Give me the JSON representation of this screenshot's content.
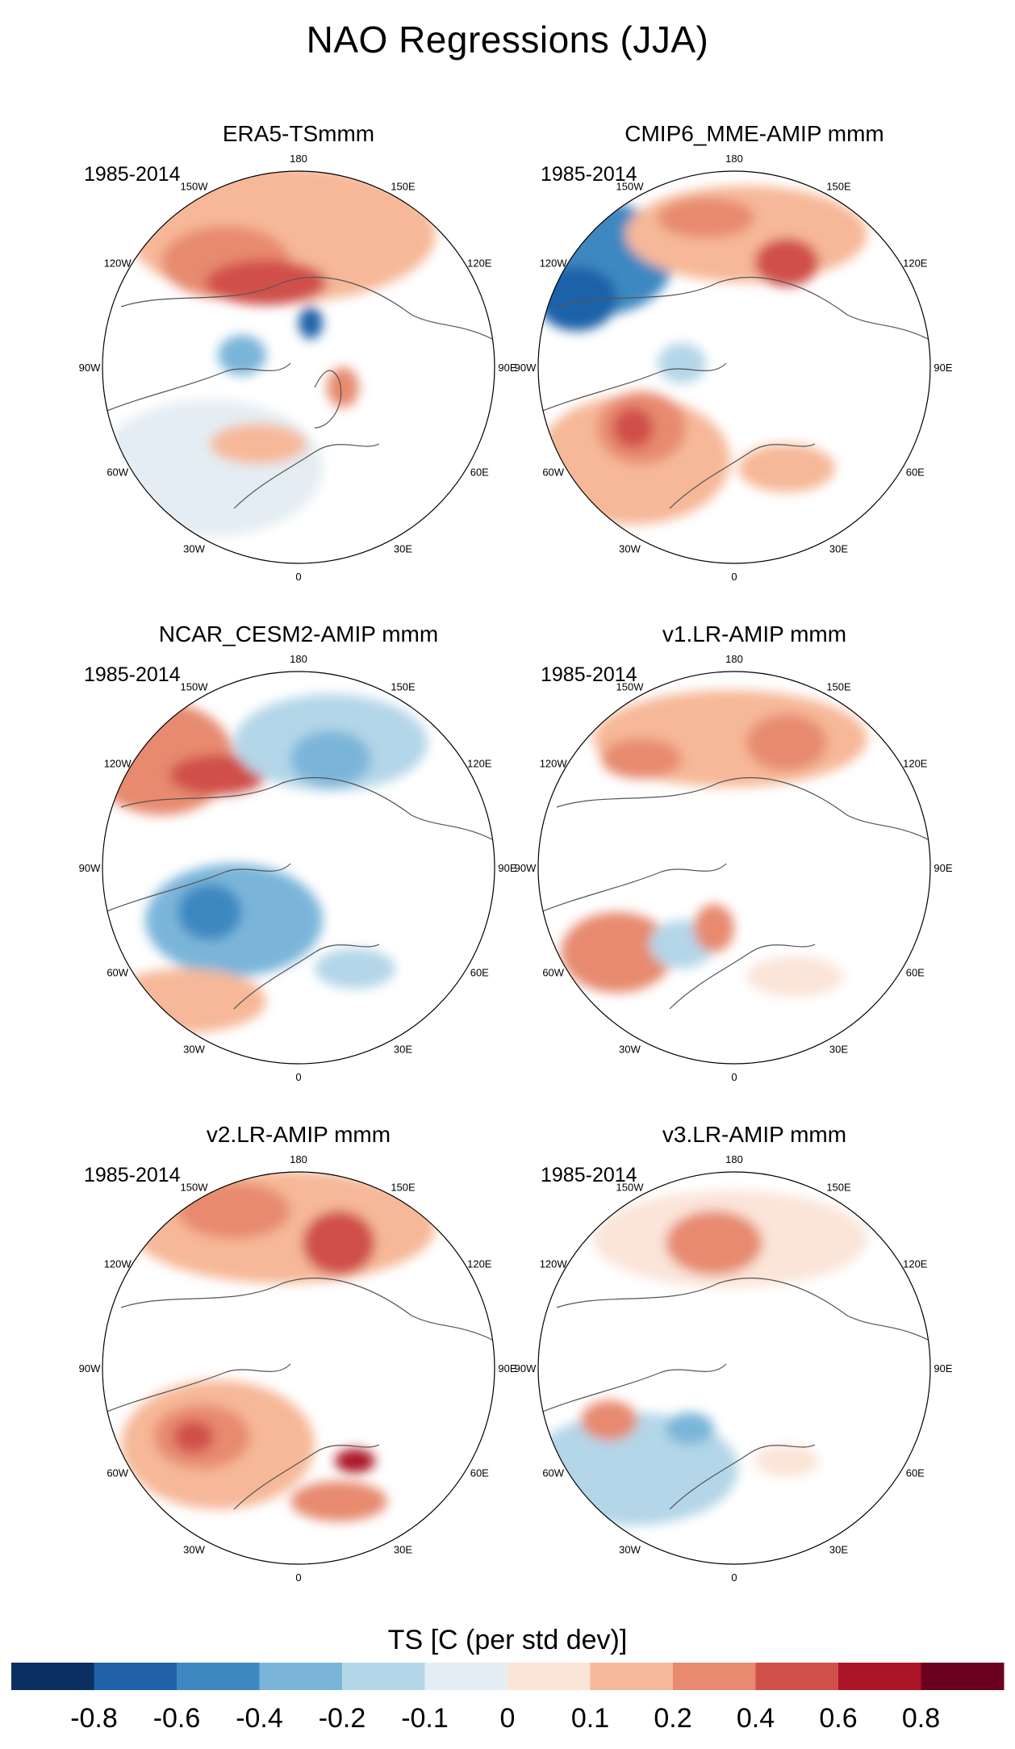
{
  "title": "NAO Regressions (JJA)",
  "colorbar": {
    "title": "TS [C (per std dev)]",
    "colors": [
      "#0b2f60",
      "#1f62a8",
      "#3d88c1",
      "#7ab5d9",
      "#b3d6e8",
      "#e4edf3",
      "#fbe4d8",
      "#f6b898",
      "#e78a6f",
      "#d0504a",
      "#ac1527",
      "#6b0020"
    ],
    "labels": [
      "-0.8",
      "-0.6",
      "-0.4",
      "-0.2",
      "-0.1",
      "0",
      "0.1",
      "0.2",
      "0.4",
      "0.6",
      "0.8"
    ]
  },
  "longitude_labels": [
    "180",
    "150E",
    "120E",
    "90E",
    "60E",
    "30E",
    "0",
    "30W",
    "60W",
    "90W",
    "120W",
    "150W"
  ],
  "panels": [
    {
      "title": "ERA5-TSmmm",
      "period": "1985-2014"
    },
    {
      "title": "CMIP6_MME-AMIP  mmm",
      "period": "1985-2014"
    },
    {
      "title": "NCAR_CESM2-AMIP  mmm",
      "period": "1985-2014"
    },
    {
      "title": "v1.LR-AMIP  mmm",
      "period": "1985-2014"
    },
    {
      "title": "v2.LR-AMIP  mmm",
      "period": "1985-2014"
    },
    {
      "title": "v3.LR-AMIP  mmm",
      "period": "1985-2014"
    }
  ]
}
